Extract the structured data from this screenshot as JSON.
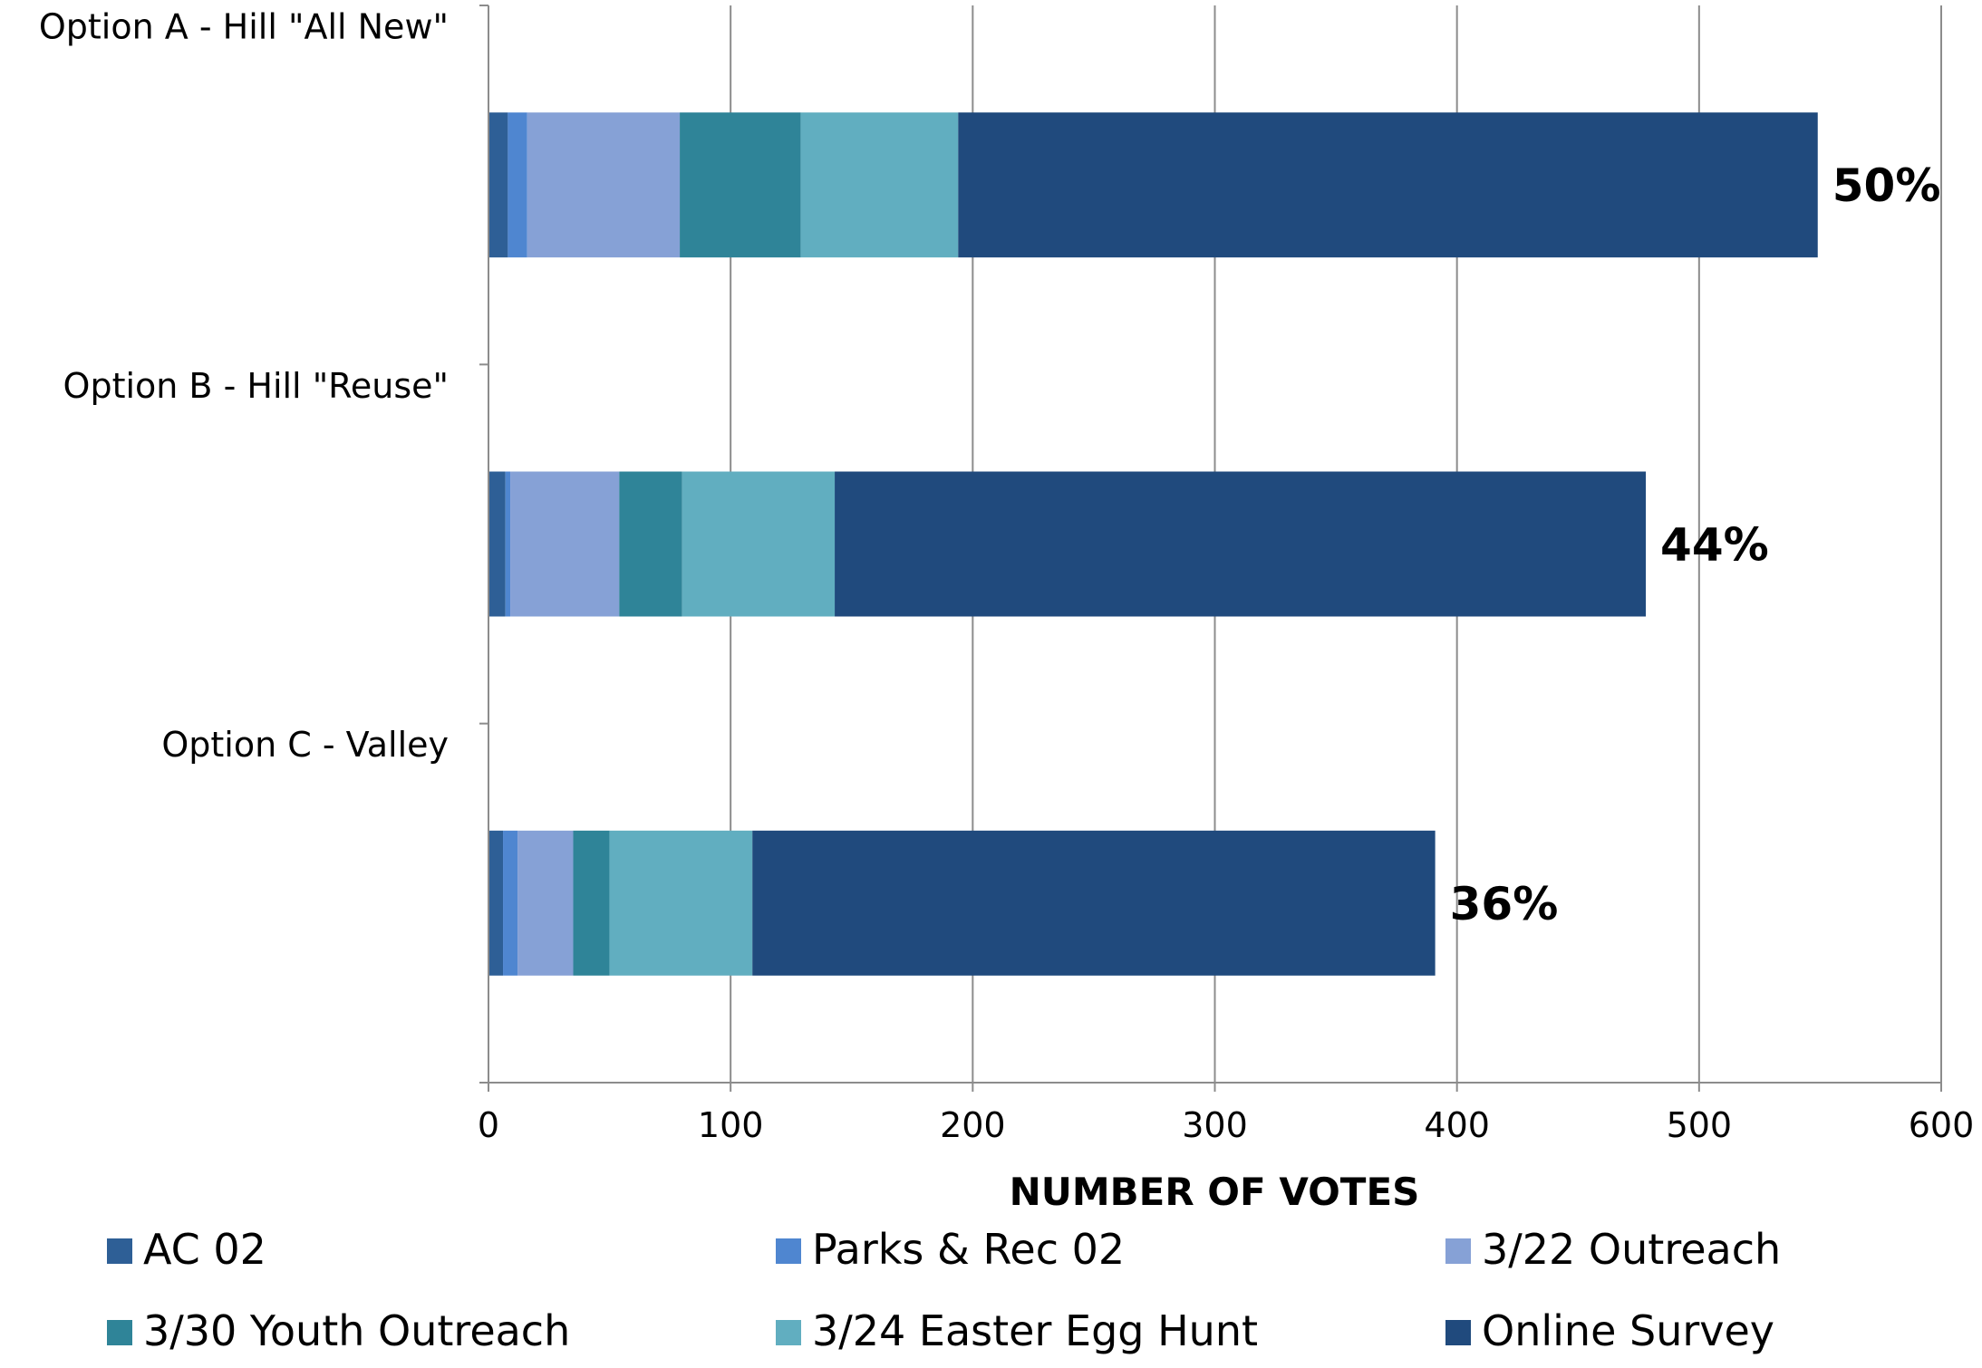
{
  "chart_data": {
    "type": "bar",
    "orientation": "horizontal",
    "stacked": true,
    "categories": [
      "Option A - Hill \"All New\"",
      "Option B - Hill \"Reuse\"",
      "Option C - Valley"
    ],
    "series": [
      {
        "name": "AC 02",
        "color": "#2E5F96",
        "values": [
          8,
          7,
          6
        ]
      },
      {
        "name": "Parks & Rec 02",
        "color": "#4F86D0",
        "values": [
          8,
          2,
          6
        ]
      },
      {
        "name": "3/22 Outreach",
        "color": "#86A1D6",
        "values": [
          63,
          45,
          23
        ]
      },
      {
        "name": "3/30 Youth Outreach",
        "color": "#2F8498",
        "values": [
          50,
          26,
          15
        ]
      },
      {
        "name": "3/24 Easter Egg Hunt",
        "color": "#61AEC0",
        "values": [
          65,
          63,
          59
        ]
      },
      {
        "name": "Online Survey",
        "color": "#204A7D",
        "values": [
          355,
          335,
          282
        ]
      }
    ],
    "data_labels": [
      "50%",
      "44%",
      "36%"
    ],
    "xlabel": "NUMBER OF VOTES",
    "ylabel": "",
    "xlim": [
      0,
      600
    ],
    "xticks": [
      0,
      100,
      200,
      300,
      400,
      500,
      600
    ],
    "grid": "vertical",
    "legend": "bottom"
  }
}
